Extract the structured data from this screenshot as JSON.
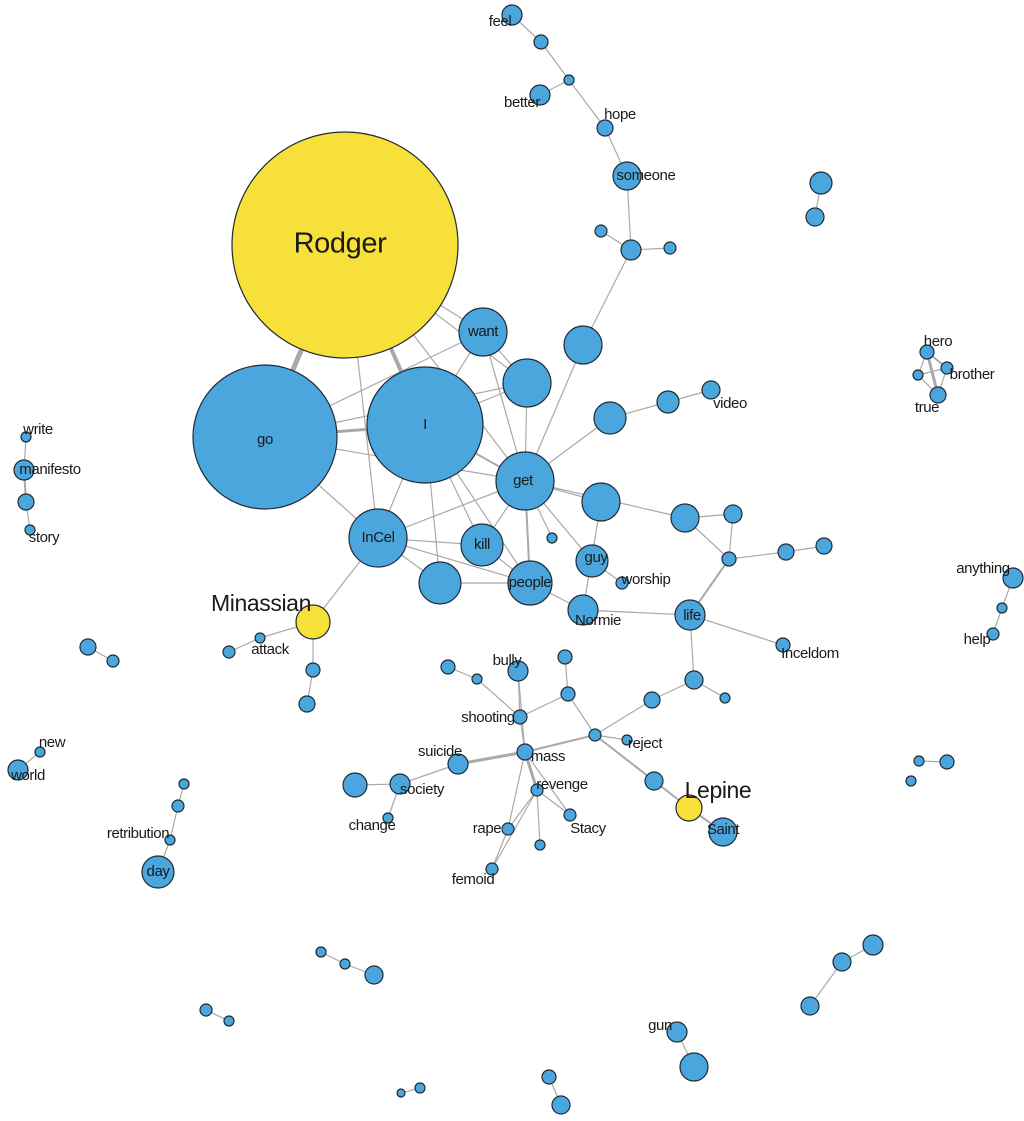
{
  "nodes": [
    {
      "label": "Rodger"
    },
    {
      "label": "go"
    },
    {
      "label": "I"
    },
    {
      "label": "want"
    },
    {
      "label": "get"
    },
    {
      "label": "InCel"
    },
    {
      "label": "kill"
    },
    {
      "label": "people"
    },
    {
      "label": "guy"
    },
    {
      "label": "worship"
    },
    {
      "label": "Normie"
    },
    {
      "label": "life"
    },
    {
      "label": "Inceldom"
    },
    {
      "label": "Minassian"
    },
    {
      "label": "attack"
    },
    {
      "label": "video"
    },
    {
      "label": "feel"
    },
    {
      "label": "better"
    },
    {
      "label": "hope"
    },
    {
      "label": "someone"
    },
    {
      "label": "hero"
    },
    {
      "label": "brother"
    },
    {
      "label": "true"
    },
    {
      "label": "write"
    },
    {
      "label": "manifesto"
    },
    {
      "label": "story"
    },
    {
      "label": "anything"
    },
    {
      "label": "help"
    },
    {
      "label": "new"
    },
    {
      "label": "world"
    },
    {
      "label": "retribution"
    },
    {
      "label": "day"
    },
    {
      "label": "bully"
    },
    {
      "label": "shooting"
    },
    {
      "label": "mass"
    },
    {
      "label": "suicide"
    },
    {
      "label": "society"
    },
    {
      "label": "change"
    },
    {
      "label": "revenge"
    },
    {
      "label": "rape"
    },
    {
      "label": "Stacy"
    },
    {
      "label": "femoid"
    },
    {
      "label": "reject"
    },
    {
      "label": "Lepine"
    },
    {
      "label": "Saint"
    },
    {
      "label": "gun"
    }
  ]
}
